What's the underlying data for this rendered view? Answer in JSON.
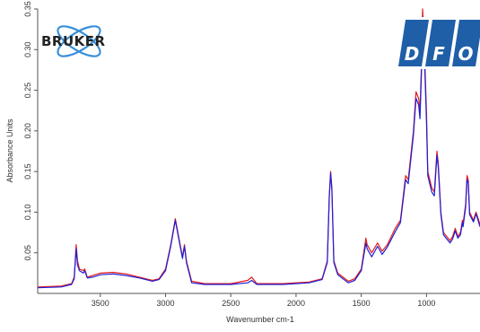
{
  "chart_data": {
    "type": "line",
    "title": "",
    "xlabel": "Wavenumber cm-1",
    "ylabel": "Absorbance Units",
    "x_reversed": true,
    "xlim": [
      3980,
      590
    ],
    "ylim": [
      0.0,
      0.35
    ],
    "x_ticks": [
      3500,
      3000,
      2500,
      2000,
      1500,
      1000
    ],
    "x_tick_labels": [
      "3500",
      "3000",
      "2500",
      "2000",
      "1500",
      "1000"
    ],
    "y_ticks": [
      0.05,
      0.1,
      0.15,
      0.2,
      0.25,
      0.3,
      0.35
    ],
    "y_tick_labels": [
      "0.05",
      "0.10",
      "0.15",
      "0.20",
      "0.25",
      "0.30",
      "0.35"
    ],
    "grid": false,
    "legend": "none",
    "series": [
      {
        "color": "#e41a1c",
        "points": [
          [
            3980,
            0.008
          ],
          [
            3800,
            0.009
          ],
          [
            3720,
            0.012
          ],
          [
            3700,
            0.02
          ],
          [
            3685,
            0.06
          ],
          [
            3675,
            0.04
          ],
          [
            3660,
            0.03
          ],
          [
            3630,
            0.028
          ],
          [
            3620,
            0.03
          ],
          [
            3600,
            0.02
          ],
          [
            3560,
            0.022
          ],
          [
            3500,
            0.025
          ],
          [
            3400,
            0.026
          ],
          [
            3300,
            0.024
          ],
          [
            3200,
            0.02
          ],
          [
            3100,
            0.016
          ],
          [
            3050,
            0.018
          ],
          [
            3000,
            0.03
          ],
          [
            2960,
            0.06
          ],
          [
            2925,
            0.092
          ],
          [
            2900,
            0.07
          ],
          [
            2870,
            0.045
          ],
          [
            2855,
            0.06
          ],
          [
            2840,
            0.04
          ],
          [
            2800,
            0.015
          ],
          [
            2700,
            0.012
          ],
          [
            2500,
            0.012
          ],
          [
            2370,
            0.016
          ],
          [
            2340,
            0.02
          ],
          [
            2300,
            0.012
          ],
          [
            2100,
            0.012
          ],
          [
            1900,
            0.014
          ],
          [
            1800,
            0.018
          ],
          [
            1760,
            0.04
          ],
          [
            1745,
            0.12
          ],
          [
            1735,
            0.15
          ],
          [
            1725,
            0.13
          ],
          [
            1710,
            0.04
          ],
          [
            1680,
            0.025
          ],
          [
            1640,
            0.02
          ],
          [
            1600,
            0.015
          ],
          [
            1550,
            0.018
          ],
          [
            1500,
            0.03
          ],
          [
            1465,
            0.068
          ],
          [
            1455,
            0.06
          ],
          [
            1420,
            0.05
          ],
          [
            1375,
            0.062
          ],
          [
            1340,
            0.052
          ],
          [
            1300,
            0.06
          ],
          [
            1240,
            0.08
          ],
          [
            1200,
            0.09
          ],
          [
            1160,
            0.145
          ],
          [
            1140,
            0.14
          ],
          [
            1100,
            0.2
          ],
          [
            1080,
            0.248
          ],
          [
            1060,
            0.24
          ],
          [
            1050,
            0.225
          ],
          [
            1035,
            0.3
          ],
          [
            1030,
            0.35
          ],
          [
            1020,
            0.32
          ],
          [
            1000,
            0.22
          ],
          [
            990,
            0.15
          ],
          [
            960,
            0.13
          ],
          [
            940,
            0.125
          ],
          [
            920,
            0.175
          ],
          [
            910,
            0.16
          ],
          [
            890,
            0.1
          ],
          [
            870,
            0.075
          ],
          [
            820,
            0.065
          ],
          [
            800,
            0.07
          ],
          [
            780,
            0.08
          ],
          [
            760,
            0.07
          ],
          [
            740,
            0.075
          ],
          [
            725,
            0.09
          ],
          [
            720,
            0.085
          ],
          [
            700,
            0.11
          ],
          [
            690,
            0.145
          ],
          [
            680,
            0.14
          ],
          [
            670,
            0.1
          ],
          [
            640,
            0.09
          ],
          [
            620,
            0.1
          ],
          [
            590,
            0.085
          ]
        ]
      },
      {
        "color": "#1f1fd6",
        "points": [
          [
            3980,
            0.007
          ],
          [
            3800,
            0.008
          ],
          [
            3720,
            0.011
          ],
          [
            3700,
            0.018
          ],
          [
            3685,
            0.055
          ],
          [
            3675,
            0.035
          ],
          [
            3660,
            0.028
          ],
          [
            3630,
            0.025
          ],
          [
            3620,
            0.028
          ],
          [
            3600,
            0.019
          ],
          [
            3560,
            0.02
          ],
          [
            3500,
            0.023
          ],
          [
            3400,
            0.024
          ],
          [
            3300,
            0.022
          ],
          [
            3200,
            0.019
          ],
          [
            3100,
            0.015
          ],
          [
            3050,
            0.017
          ],
          [
            3000,
            0.028
          ],
          [
            2960,
            0.058
          ],
          [
            2925,
            0.09
          ],
          [
            2900,
            0.068
          ],
          [
            2870,
            0.043
          ],
          [
            2855,
            0.058
          ],
          [
            2840,
            0.038
          ],
          [
            2800,
            0.013
          ],
          [
            2700,
            0.011
          ],
          [
            2500,
            0.011
          ],
          [
            2370,
            0.013
          ],
          [
            2340,
            0.016
          ],
          [
            2300,
            0.011
          ],
          [
            2100,
            0.011
          ],
          [
            1900,
            0.013
          ],
          [
            1800,
            0.017
          ],
          [
            1760,
            0.038
          ],
          [
            1745,
            0.118
          ],
          [
            1735,
            0.148
          ],
          [
            1725,
            0.128
          ],
          [
            1710,
            0.038
          ],
          [
            1680,
            0.023
          ],
          [
            1640,
            0.018
          ],
          [
            1600,
            0.013
          ],
          [
            1550,
            0.016
          ],
          [
            1500,
            0.028
          ],
          [
            1465,
            0.062
          ],
          [
            1455,
            0.055
          ],
          [
            1420,
            0.045
          ],
          [
            1375,
            0.058
          ],
          [
            1340,
            0.048
          ],
          [
            1300,
            0.057
          ],
          [
            1240,
            0.076
          ],
          [
            1200,
            0.087
          ],
          [
            1160,
            0.14
          ],
          [
            1140,
            0.135
          ],
          [
            1100,
            0.195
          ],
          [
            1080,
            0.24
          ],
          [
            1060,
            0.232
          ],
          [
            1050,
            0.215
          ],
          [
            1035,
            0.29
          ],
          [
            1030,
            0.34
          ],
          [
            1020,
            0.31
          ],
          [
            1000,
            0.21
          ],
          [
            990,
            0.145
          ],
          [
            960,
            0.125
          ],
          [
            940,
            0.12
          ],
          [
            920,
            0.17
          ],
          [
            910,
            0.155
          ],
          [
            890,
            0.097
          ],
          [
            870,
            0.072
          ],
          [
            820,
            0.062
          ],
          [
            800,
            0.067
          ],
          [
            780,
            0.077
          ],
          [
            760,
            0.068
          ],
          [
            740,
            0.072
          ],
          [
            725,
            0.087
          ],
          [
            720,
            0.082
          ],
          [
            700,
            0.106
          ],
          [
            690,
            0.14
          ],
          [
            680,
            0.136
          ],
          [
            670,
            0.097
          ],
          [
            640,
            0.088
          ],
          [
            620,
            0.098
          ],
          [
            590,
            0.082
          ]
        ]
      }
    ]
  },
  "logos": {
    "bruker": {
      "text": "BRUKER",
      "color": "#3a8fd9"
    },
    "dfo": {
      "letters": [
        "D",
        "F",
        "O"
      ],
      "color": "#1f5fa8"
    }
  }
}
